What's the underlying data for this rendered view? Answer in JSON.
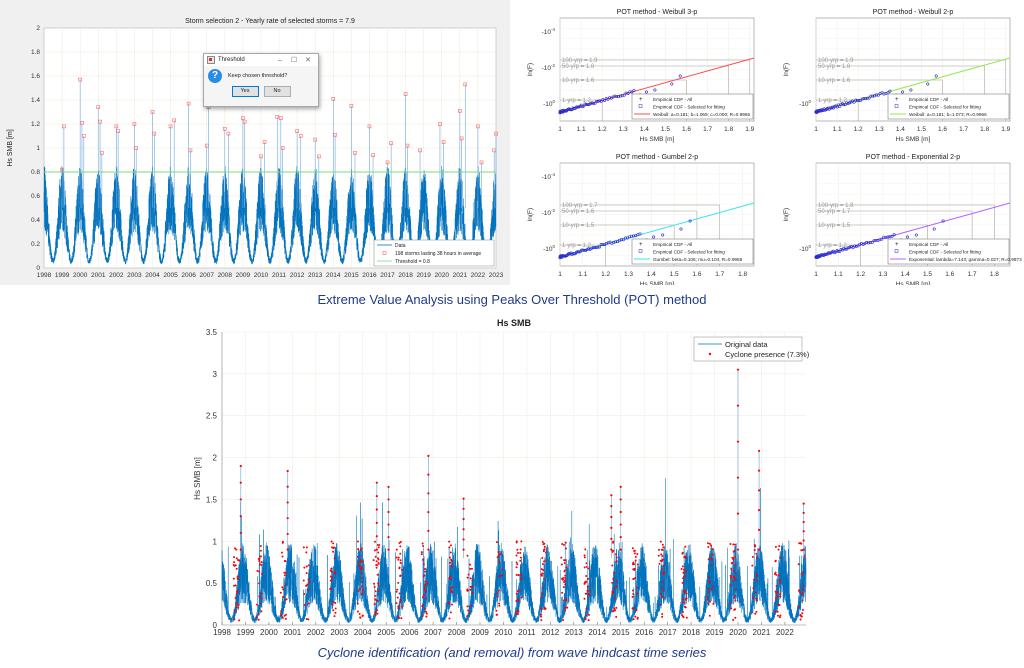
{
  "captions": {
    "top": "Extreme Value Analysis using Peaks Over Threshold (POT) method",
    "bottom": "Cyclone identification (and removal) from wave hindcast time series"
  },
  "dialog": {
    "title": "Threshold",
    "minimize": "–",
    "maximize": "☐",
    "close": "✕",
    "question_icon": "?",
    "message": "Keep chosen threshold?",
    "yes_label": "Yes",
    "no_label": "No"
  },
  "chart_data": [
    {
      "id": "storm-selection",
      "type": "line",
      "title": "Storm selection 2 - Yearly rate of selected storms = 7.9",
      "xlabel": "",
      "ylabel": "Hs SMB [m]",
      "xlim": [
        1998,
        2023
      ],
      "ylim": [
        0,
        2
      ],
      "xticks": [
        "1998",
        "1999",
        "2000",
        "2001",
        "2002",
        "2003",
        "2004",
        "2005",
        "2006",
        "2007",
        "2008",
        "2009",
        "2010",
        "2011",
        "2012",
        "2013",
        "2014",
        "2015",
        "2016",
        "2017",
        "2018",
        "2019",
        "2020",
        "2021",
        "2022",
        "2023"
      ],
      "yticks": [
        "0",
        "0.2",
        "0.4",
        "0.6",
        "0.8",
        "1",
        "1.2",
        "1.4",
        "1.6",
        "1.8",
        "2"
      ],
      "grid": true,
      "legend_position": "bottom-right",
      "legend": [
        "Data",
        "198 storms lasting 38 hours in average",
        "Threshold = 0.8"
      ],
      "threshold": 0.8,
      "series": [
        {
          "name": "Data",
          "color": "#0072bd",
          "note": "seasonal wave height series, troughs ~0.05 m, winter peaks 0.8–1.6 m"
        },
        {
          "name": "Storm peaks",
          "color": "#ff6666",
          "x": [
            1999.0,
            1999.1,
            2000.0,
            2000.1,
            2000.2,
            2001.0,
            2001.1,
            2001.2,
            2002.0,
            2002.1,
            2003.0,
            2003.1,
            2004.0,
            2004.1,
            2005.0,
            2005.2,
            2006.0,
            2006.1,
            2007.0,
            2007.1,
            2008.0,
            2008.2,
            2009.0,
            2009.1,
            2010.0,
            2010.2,
            2010.9,
            2011.1,
            2011.2,
            2012.0,
            2012.2,
            2013.0,
            2013.2,
            2014.0,
            2014.1,
            2015.0,
            2015.2,
            2016.0,
            2016.2,
            2017.0,
            2017.2,
            2018.0,
            2018.1,
            2018.8,
            2019.9,
            2020.1,
            2021.0,
            2021.1,
            2021.3,
            2022.0,
            2022.2,
            2022.9,
            2023.0
          ],
          "y": [
            0.82,
            1.18,
            1.57,
            1.21,
            1.1,
            1.34,
            1.22,
            0.96,
            1.18,
            1.14,
            1.2,
            1.0,
            1.3,
            1.12,
            1.18,
            1.23,
            1.37,
            0.98,
            1.02,
            1.34,
            1.16,
            1.12,
            1.25,
            1.22,
            0.93,
            1.05,
            1.26,
            1.25,
            1.0,
            1.14,
            1.1,
            1.07,
            0.93,
            1.41,
            1.11,
            1.35,
            0.96,
            1.18,
            0.94,
            0.88,
            1.04,
            1.45,
            1.02,
            0.98,
            1.2,
            1.05,
            1.31,
            1.08,
            1.53,
            1.18,
            0.88,
            0.98,
            1.12
          ]
        },
        {
          "name": "Threshold = 0.8",
          "color": "#77dd77",
          "value": 0.8
        }
      ]
    },
    {
      "id": "weibull-3p",
      "type": "scatter",
      "title": "POT method - Weibull 3-p",
      "xlabel": "Hs SMB [m]",
      "ylabel": "ln(F)",
      "xlim": [
        1,
        1.92
      ],
      "xticks": [
        "1",
        "1.1",
        "1.2",
        "1.3",
        "1.4",
        "1.5",
        "1.6",
        "1.7",
        "1.8",
        "1.9"
      ],
      "yticks": [
        "-10^-4",
        "-10^-2",
        "-10^0"
      ],
      "return_levels": [
        "100-yrp = 1.9",
        "50-yrp = 1.8",
        "10-yrp = 1.6",
        "1-yrp = 1.2"
      ],
      "legend": [
        "Empirical CDF - All",
        "Empirical CDF - Selected for fitting",
        "Weibull: a=0.181; b=1.069; c=0.000; R=0.9966"
      ],
      "fit_color": "#ff4d4d",
      "legend_position": "bottom-right"
    },
    {
      "id": "weibull-2p",
      "type": "scatter",
      "title": "POT method - Weibull 2-p",
      "xlabel": "Hs SMB [m]",
      "ylabel": "ln(F)",
      "xlim": [
        1,
        1.92
      ],
      "xticks": [
        "1",
        "1.1",
        "1.2",
        "1.3",
        "1.4",
        "1.5",
        "1.6",
        "1.7",
        "1.8",
        "1.9"
      ],
      "yticks": [
        "-10^0"
      ],
      "return_levels": [
        "100-yrp = 1.9",
        "50-yrp = 1.8",
        "10-yrp = 1.6",
        "1-yrp = 1.2"
      ],
      "legend": [
        "Empirical CDF - All",
        "Empirical CDF - Selected for fitting",
        "Weibull: a=0.181; b=1.073; R=0.9966"
      ],
      "fit_color": "#99e64d",
      "legend_position": "bottom-right"
    },
    {
      "id": "gumbel-2p",
      "type": "scatter",
      "title": "POT method - Gumbel 2-p",
      "xlabel": "Hs SMB [m]",
      "ylabel": "ln(F)",
      "xlim": [
        1,
        1.85
      ],
      "xticks": [
        "1",
        "1.1",
        "1.2",
        "1.3",
        "1.4",
        "1.5",
        "1.6",
        "1.7",
        "1.8"
      ],
      "yticks": [
        "-10^-4",
        "-10^-2",
        "-10^0"
      ],
      "return_levels": [
        "100-yrp = 1.7",
        "50-yrp = 1.6",
        "10-yrp = 1.5",
        "1-yrp = 1.2"
      ],
      "legend": [
        "Empirical CDF - All",
        "Empirical CDF - Selected for fitting",
        "Gumbel: beta=0.106; mu=0.104; R=0.9958"
      ],
      "fit_color": "#33e6f2",
      "legend_position": "bottom-right"
    },
    {
      "id": "exponential-2p",
      "type": "scatter",
      "title": "POT method - Exponential 2-p",
      "xlabel": "Hs SMB [m]",
      "ylabel": "ln(F)",
      "xlim": [
        1,
        1.87
      ],
      "xticks": [
        "1",
        "1.1",
        "1.2",
        "1.3",
        "1.4",
        "1.5",
        "1.6",
        "1.7",
        "1.8"
      ],
      "yticks": [
        "-10^0"
      ],
      "return_levels": [
        "100-yrp = 1.8",
        "50-yrp = 1.7",
        "10-yrp = 1.5",
        "1-yrp = 1.2"
      ],
      "legend": [
        "Empirical CDF - All",
        "Empirical CDF - Selected for fitting",
        "Exponential: lambda=7.143; gamma=0.027; R=0.9873"
      ],
      "fit_color": "#b366ff",
      "legend_position": "bottom-right"
    },
    {
      "id": "cyclone-series",
      "type": "line",
      "title": "Hs SMB",
      "xlabel": "",
      "ylabel": "Hs SMB [m]",
      "xlim": [
        1998,
        2022.9
      ],
      "ylim": [
        0,
        3.5
      ],
      "xticks": [
        "1998",
        "1999",
        "2000",
        "2001",
        "2002",
        "2003",
        "2004",
        "2005",
        "2006",
        "2007",
        "2008",
        "2009",
        "2010",
        "2011",
        "2012",
        "2013",
        "2014",
        "2015",
        "2016",
        "2017",
        "2018",
        "2019",
        "2020",
        "2021",
        "2022"
      ],
      "yticks": [
        "0",
        "0.5",
        "1",
        "1.5",
        "2",
        "2.5",
        "3",
        "3.5"
      ],
      "grid": true,
      "legend_position": "top-right",
      "legend": [
        "Original data",
        "Cyclone presence (7.3%)"
      ],
      "series": [
        {
          "name": "Original data",
          "color": "#0072bd"
        },
        {
          "name": "Cyclone presence (7.3%)",
          "color": "#ff0000",
          "peaks_x": [
            1998.8,
            2000.8,
            2004.6,
            2005.1,
            2006.8,
            2008.3,
            2014.6,
            2015.0,
            2020.0,
            2020.9,
            2022.8
          ],
          "peaks_y": [
            1.9,
            1.84,
            1.7,
            1.65,
            2.02,
            1.51,
            1.55,
            1.65,
            3.05,
            2.08,
            1.45
          ]
        }
      ]
    }
  ]
}
